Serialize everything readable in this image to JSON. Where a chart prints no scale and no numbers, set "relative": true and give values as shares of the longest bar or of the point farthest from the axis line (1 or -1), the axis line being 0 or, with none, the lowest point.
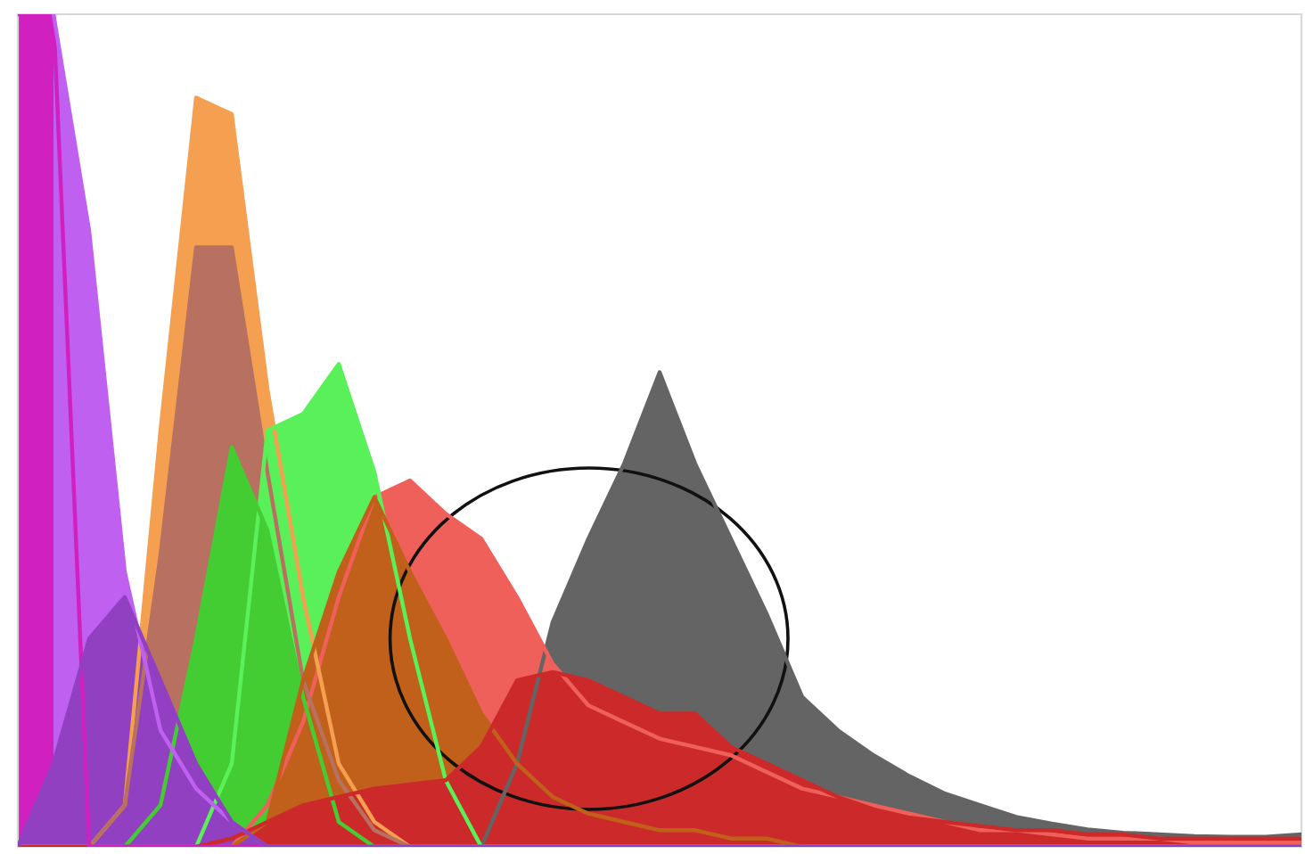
{
  "chart_data": {
    "type": "area",
    "relative": true,
    "categories": [
      null,
      null,
      null,
      null,
      null,
      null,
      null,
      null,
      null,
      null,
      null,
      null,
      null,
      null,
      null,
      null,
      null,
      null,
      null,
      null,
      null,
      null,
      null,
      null,
      null,
      null,
      null,
      null,
      null,
      null,
      null,
      null,
      null,
      null,
      null,
      null,
      null
    ],
    "series": [
      {
        "color": "#646464",
        "values": [
          0,
          0,
          0,
          0,
          0,
          0,
          0,
          0,
          0,
          0,
          0,
          0,
          0,
          0,
          0.1,
          0.27,
          0.37,
          0.46,
          0.57,
          0.46,
          0.37,
          0.28,
          0.18,
          0.14,
          0.11,
          0.085,
          0.064,
          0.05,
          0.036,
          0.028,
          0.021,
          0.017,
          0.015,
          0.013,
          0.012,
          0.012,
          0.015
        ]
      },
      {
        "color": "#f0605a",
        "values": [
          0,
          0,
          0,
          0,
          0,
          0,
          0,
          0.05,
          0.15,
          0.3,
          0.42,
          0.44,
          0.4,
          0.37,
          0.3,
          0.22,
          0.17,
          0.15,
          0.13,
          0.12,
          0.11,
          0.09,
          0.07,
          0.06,
          0.05,
          0.04,
          0.03,
          0.02,
          0.02,
          0.015,
          0.01,
          0.01,
          0.01,
          0.005,
          0.005,
          0.005,
          0.005
        ]
      },
      {
        "color": "#f4a050",
        "values": [
          0,
          0,
          0,
          0.05,
          0.5,
          0.9,
          0.88,
          0.55,
          0.3,
          0.1,
          0.03,
          0,
          0,
          0,
          0,
          0,
          0,
          0,
          0,
          0,
          0,
          0,
          0,
          0,
          0,
          0,
          0,
          0,
          0,
          0,
          0,
          0,
          0,
          0,
          0,
          0,
          0
        ]
      },
      {
        "color": "#b87060",
        "values": [
          0,
          0,
          0,
          0.05,
          0.35,
          0.72,
          0.72,
          0.45,
          0.2,
          0.08,
          0.02,
          0,
          0,
          0,
          0,
          0,
          0,
          0,
          0,
          0,
          0,
          0,
          0,
          0,
          0,
          0,
          0,
          0,
          0,
          0,
          0,
          0,
          0,
          0,
          0,
          0,
          0
        ]
      },
      {
        "color": "#5af05a",
        "values": [
          0,
          0,
          0,
          0,
          0,
          0,
          0.1,
          0.5,
          0.52,
          0.58,
          0.45,
          0.25,
          0.08,
          0,
          0,
          0,
          0,
          0,
          0,
          0,
          0,
          0,
          0,
          0,
          0,
          0,
          0,
          0,
          0,
          0,
          0,
          0,
          0,
          0,
          0,
          0,
          0
        ]
      },
      {
        "color": "#44cc33",
        "values": [
          0,
          0,
          0,
          0,
          0.05,
          0.25,
          0.48,
          0.38,
          0.18,
          0.03,
          0,
          0,
          0,
          0,
          0,
          0,
          0,
          0,
          0,
          0,
          0,
          0,
          0,
          0,
          0,
          0,
          0,
          0,
          0,
          0,
          0,
          0,
          0,
          0,
          0,
          0,
          0
        ]
      },
      {
        "color": "#c0601a",
        "values": [
          0,
          0,
          0,
          0,
          0,
          0,
          0,
          0.03,
          0.2,
          0.33,
          0.42,
          0.33,
          0.25,
          0.16,
          0.1,
          0.06,
          0.04,
          0.03,
          0.02,
          0.02,
          0.01,
          0.01,
          0,
          0,
          0,
          0,
          0,
          0,
          0,
          0,
          0,
          0,
          0,
          0,
          0,
          0,
          0
        ]
      },
      {
        "color": "#cc2a2a",
        "values": [
          0,
          0,
          0,
          0,
          0,
          0,
          0.01,
          0.03,
          0.05,
          0.06,
          0.07,
          0.075,
          0.08,
          0.12,
          0.2,
          0.21,
          0.2,
          0.18,
          0.16,
          0.16,
          0.12,
          0.1,
          0.08,
          0.06,
          0.045,
          0.035,
          0.03,
          0.025,
          0.02,
          0.02,
          0.015,
          0.015,
          0.01,
          0.01,
          0.01,
          0.01,
          0.01
        ]
      },
      {
        "color": "#d020c0",
        "values": [
          1,
          1,
          0,
          0,
          0,
          0,
          0,
          0,
          0,
          0,
          0,
          0,
          0,
          0,
          0,
          0,
          0,
          0,
          0,
          0,
          0,
          0,
          0,
          0,
          0,
          0,
          0,
          0,
          0,
          0,
          0,
          0,
          0,
          0,
          0,
          0,
          0
        ]
      },
      {
        "color": "#c060f0",
        "values": [
          null,
          1,
          0.74,
          0.33,
          0.14,
          0.07,
          0.03,
          0,
          0,
          0,
          0,
          0,
          0,
          0,
          0,
          0,
          0,
          0,
          0,
          0,
          0,
          0,
          0,
          0,
          0,
          0,
          0,
          0,
          0,
          0,
          0,
          0,
          0,
          0,
          0,
          0,
          0
        ]
      },
      {
        "color": "#9040c0",
        "values": [
          0,
          0.1,
          0.25,
          0.3,
          0.2,
          0.1,
          0.03,
          0,
          0,
          0,
          0,
          0,
          0,
          0,
          0,
          0,
          0,
          0,
          0,
          0,
          0,
          0,
          0,
          0,
          0,
          0,
          0,
          0,
          0,
          0,
          0,
          0,
          0,
          0,
          0,
          0,
          0
        ]
      }
    ]
  }
}
